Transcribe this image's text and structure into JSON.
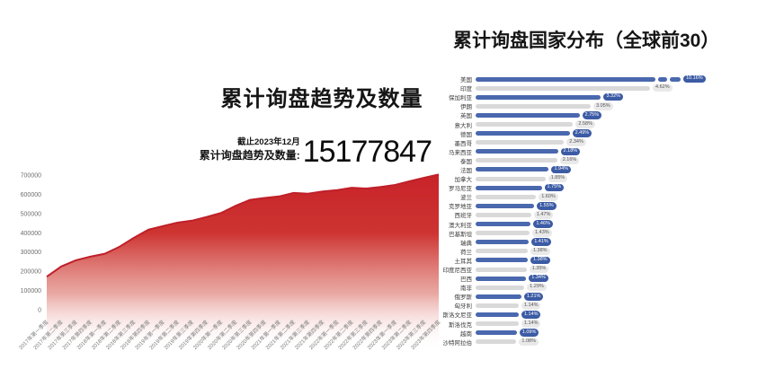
{
  "left_chart": {
    "title": "累计询盘趋势及数量",
    "stat": {
      "caption_line1": "截止2023年12月",
      "caption_line2": "累计询盘趋势及数量:",
      "value": "15177847"
    }
  },
  "right_chart": {
    "title": "累计询盘国家分布（全球前30）"
  },
  "chart_data": [
    {
      "type": "area",
      "title": "累计询盘趋势及数量",
      "xlabel": "",
      "ylabel": "",
      "ylim": [
        0,
        700000
      ],
      "yticks": [
        0,
        100000,
        200000,
        300000,
        400000,
        500000,
        600000,
        700000
      ],
      "grid": false,
      "x": [
        "2017年第一季度",
        "2017年第二季度",
        "2017年第三季度",
        "2017年第四季度",
        "2018年第一季度",
        "2018年第二季度",
        "2018年第三季度",
        "2018年第四季度",
        "2019年第一季度",
        "2019年第二季度",
        "2019年第三季度",
        "2019年第四季度",
        "2020年第一季度",
        "2020年第二季度",
        "2020年第三季度",
        "2020年第四季度",
        "2021年第一季度",
        "2021年第二季度",
        "2021年第三季度",
        "2021年第四季度",
        "2022年第一季度",
        "2022年第二季度",
        "2022年第三季度",
        "2022年第四季度",
        "2023年第一季度",
        "2023年第二季度",
        "2023年第三季度",
        "2023年第四季度"
      ],
      "values": [
        172000,
        225000,
        257000,
        276000,
        291000,
        327000,
        374000,
        416000,
        435000,
        453000,
        463000,
        482000,
        503000,
        540000,
        571000,
        581000,
        589000,
        607000,
        603000,
        615000,
        622000,
        634000,
        630000,
        638000,
        649000,
        668000,
        686000,
        703000
      ],
      "colors": {
        "area_top": "#c8232a",
        "area_mid": "#cd3431",
        "line": "#bf2029",
        "tick_text": "#7d7d7d"
      }
    },
    {
      "type": "bar",
      "orientation": "horizontal",
      "title": "累计询盘国家分布（全球前30）",
      "legend_position": "none",
      "axis_break_on_first_bar": true,
      "categories": [
        "美国",
        "印度",
        "保加利亚",
        "伊朗",
        "英国",
        "意大利",
        "德国",
        "墨西哥",
        "马来西亚",
        "泰国",
        "法国",
        "加拿大",
        "罗马尼亚",
        "波兰",
        "克罗地亚",
        "西班牙",
        "澳大利亚",
        "巴基斯坦",
        "瑞典",
        "荷兰",
        "土耳其",
        "印度尼西亚",
        "巴西",
        "南非",
        "俄罗斯",
        "匈牙利",
        "斯洛文尼亚",
        "斯洛伐克",
        "越南",
        "沙特阿拉伯"
      ],
      "values": [
        10.16,
        4.62,
        3.32,
        3.05,
        2.75,
        2.58,
        2.49,
        2.34,
        2.18,
        2.16,
        1.94,
        1.85,
        1.75,
        1.6,
        1.55,
        1.47,
        1.46,
        1.43,
        1.41,
        1.38,
        1.38,
        1.35,
        1.34,
        1.29,
        1.21,
        1.14,
        1.14,
        1.14,
        1.09,
        1.08
      ],
      "value_labels": [
        "10.16%",
        "4.62%",
        "3.32%",
        "3.05%",
        "2.75%",
        "2.58%",
        "2.49%",
        "2.34%",
        "2.18%",
        "2.16%",
        "1.94%",
        "1.85%",
        "1.75%",
        "1.60%",
        "1.55%",
        "1.47%",
        "1.46%",
        "1.43%",
        "1.41%",
        "1.38%",
        "1.38%",
        "1.35%",
        "1.34%",
        "1.29%",
        "1.21%",
        "1.14%",
        "1.14%",
        "1.14%",
        "1.09%",
        "1.08%"
      ],
      "colors": {
        "bar_primary": "#4a68ae",
        "bar_secondary": "#d9d9d9",
        "pill_primary": "#3c5ba5",
        "pill_secondary": "#e9e9e9"
      }
    }
  ]
}
